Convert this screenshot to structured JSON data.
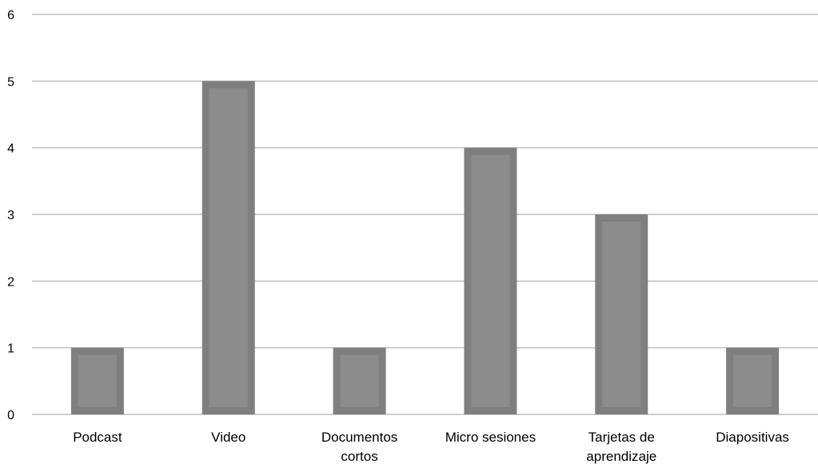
{
  "chart_data": {
    "type": "bar",
    "title": "",
    "xlabel": "",
    "ylabel": "",
    "categories": [
      [
        "Podcast"
      ],
      [
        "Video"
      ],
      [
        "Documentos",
        "cortos"
      ],
      [
        "Micro sesiones"
      ],
      [
        "Tarjetas de",
        "aprendizaje"
      ],
      [
        "Diapositivas"
      ]
    ],
    "values": [
      1,
      5,
      1,
      4,
      3,
      1
    ],
    "ylim": [
      0,
      6
    ],
    "yticks": [
      0,
      1,
      2,
      3,
      4,
      5,
      6
    ],
    "grid": true,
    "legend": "none",
    "colors": {
      "bar_border": "#7f7f7f",
      "bar_fill": "#8c8c8c",
      "gridline": "#bfbfbf",
      "axis": "#bfbfbf"
    }
  }
}
